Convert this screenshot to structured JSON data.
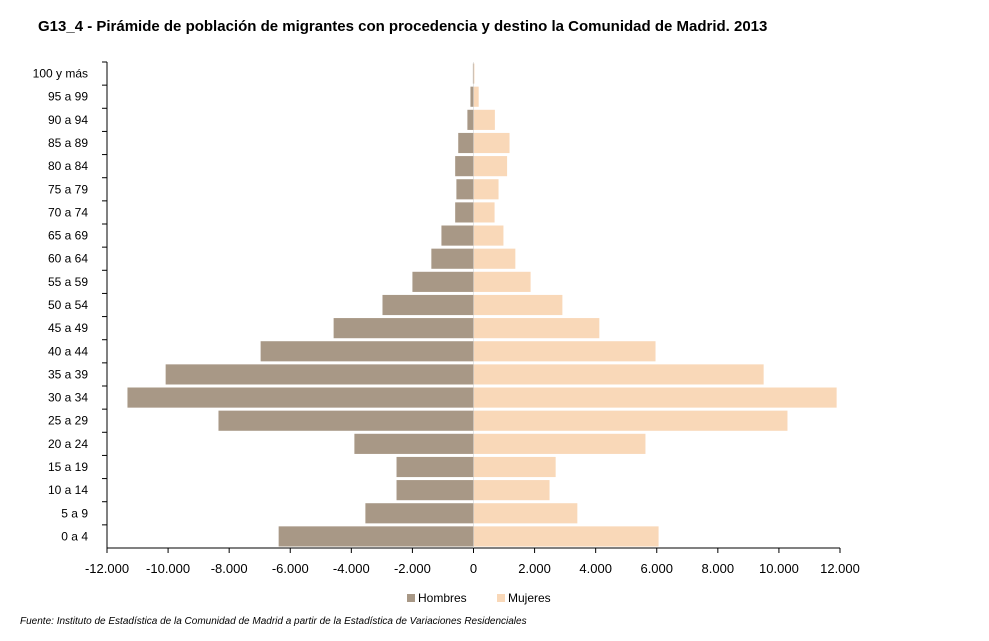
{
  "chart_data": {
    "type": "bar",
    "orientation": "horizontal-pyramid",
    "title": "G13_4 - Pirámide de población de migrantes con procedencia y destino la Comunidad de Madrid. 2013",
    "source": "Fuente: Instituto de Estadística de la Comunidad de Madrid a partir de la Estadística de Variaciones Residenciales",
    "categories": [
      "100 y más",
      "95 a 99",
      "90 a 94",
      "85 a 89",
      "80 a 84",
      "75 a 79",
      "70 a 74",
      "65 a 69",
      "60 a 64",
      "55 a 59",
      "50 a 54",
      "45 a 49",
      "40 a 44",
      "35 a 39",
      "30 a 34",
      "25 a 29",
      "20 a 24",
      "15 a 19",
      "10 a 14",
      "5 a 9",
      "0 a 4"
    ],
    "series": [
      {
        "name": "Hombres",
        "color": "#a89886",
        "values": [
          -20,
          -100,
          -200,
          -500,
          -600,
          -560,
          -600,
          -1050,
          -1380,
          -2000,
          -2980,
          -4580,
          -6970,
          -10080,
          -11330,
          -8350,
          -3900,
          -2520,
          -2520,
          -3540,
          -6380
        ]
      },
      {
        "name": "Mujeres",
        "color": "#f9d8b8",
        "values": [
          30,
          170,
          700,
          1180,
          1100,
          820,
          690,
          980,
          1370,
          1870,
          2910,
          4120,
          5960,
          9500,
          11890,
          10280,
          5630,
          2690,
          2490,
          3400,
          6060
        ]
      }
    ],
    "xlim": [
      -12000,
      12000
    ],
    "xticks": [
      -12000,
      -10000,
      -8000,
      -6000,
      -4000,
      -2000,
      0,
      2000,
      4000,
      6000,
      8000,
      10000,
      12000
    ],
    "xtick_labels": [
      "-12.000",
      "-10.000",
      "-8.000",
      "-6.000",
      "-4.000",
      "-2.000",
      "0",
      "2.000",
      "4.000",
      "6.000",
      "8.000",
      "10.000",
      "12.000"
    ],
    "legend": "bottom",
    "grid": false
  }
}
